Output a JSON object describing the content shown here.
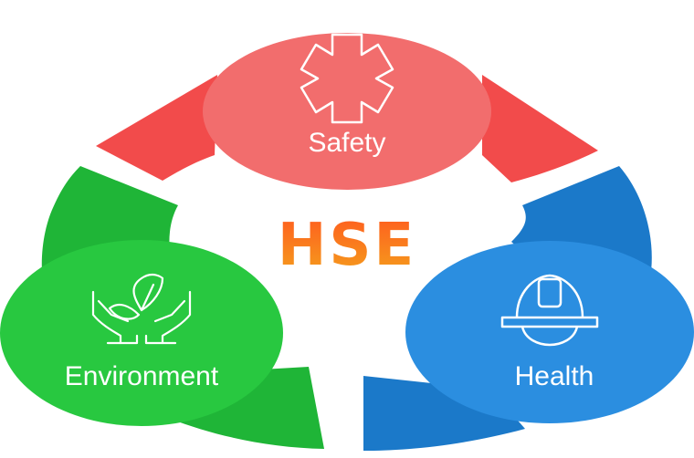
{
  "center": {
    "logo_text": "HSE"
  },
  "sections": [
    {
      "id": "safety",
      "label": "Safety",
      "icon": "star-of-life-icon",
      "ellipse_color": "#f26d6d",
      "band_color": "#f24b4b"
    },
    {
      "id": "environment",
      "label": "Environment",
      "icon": "hands-with-plant-icon",
      "ellipse_color": "#28c840",
      "band_color": "#1fb537"
    },
    {
      "id": "health",
      "label": "Health",
      "icon": "hard-hat-icon",
      "ellipse_color": "#2b8ee0",
      "band_color": "#1b79c9"
    }
  ],
  "colors": {
    "logo_gradient_top": "#ff5a1f",
    "logo_gradient_bottom": "#f4a11c"
  }
}
